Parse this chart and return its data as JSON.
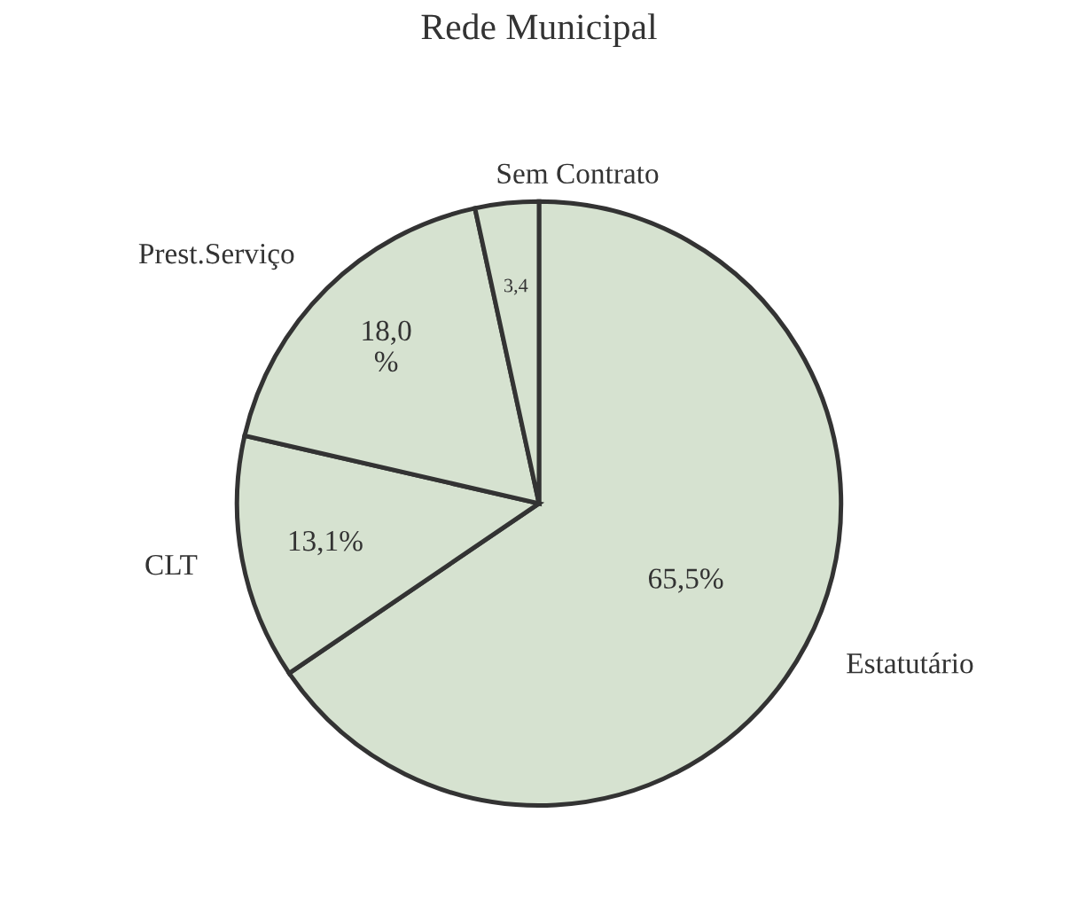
{
  "chart_data": {
    "type": "pie",
    "title": "Rede Municipal",
    "categories": [
      "Estatutário",
      "CLT",
      "Prest.Serviço",
      "Sem Contrato"
    ],
    "values": [
      65.5,
      13.1,
      18.0,
      3.4
    ],
    "value_labels": [
      "65,5%",
      "13,1%",
      "18,0\n%",
      "3,4"
    ],
    "colors": [
      "#d6e2d0",
      "#d6e2d0",
      "#d6e2d0",
      "#d6e2d0"
    ]
  }
}
